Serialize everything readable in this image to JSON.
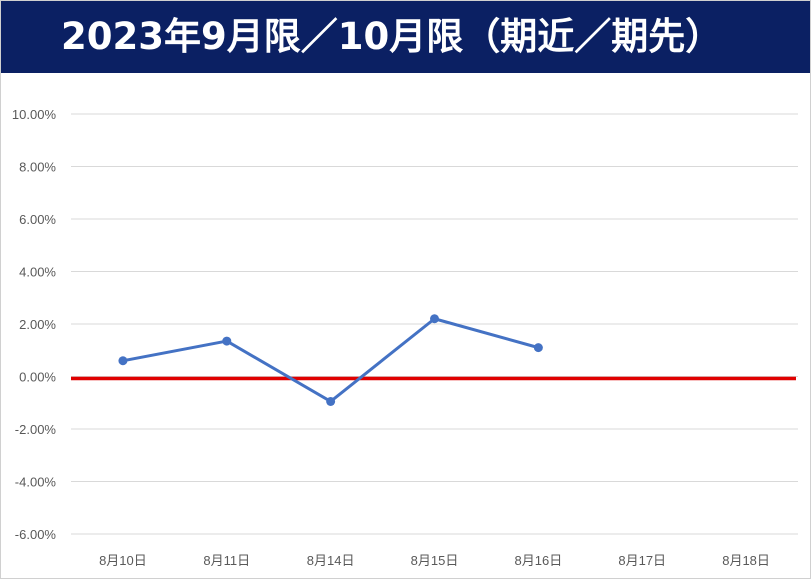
{
  "title": "2023年9月限／10月限（期近／期先）",
  "colors": {
    "title_background": "#0b2063",
    "title_text": "#ffffff",
    "series_line": "#4472c4",
    "zero_line": "#e00000",
    "grid": "#d9d9d9",
    "tick_text": "#595959"
  },
  "chart_data": {
    "type": "line",
    "title": "2023年9月限／10月限（期近／期先）",
    "xlabel": "",
    "ylabel": "",
    "categories": [
      "8月10日",
      "8月11日",
      "8月14日",
      "8月15日",
      "8月16日",
      "8月17日",
      "8月18日"
    ],
    "ylim": [
      -0.06,
      0.1
    ],
    "yticks": [
      0.1,
      0.08,
      0.06,
      0.04,
      0.02,
      0.0,
      -0.02,
      -0.04,
      -0.06
    ],
    "ytick_labels": [
      "10.00%",
      "8.00%",
      "6.00%",
      "4.00%",
      "2.00%",
      "0.00%",
      "-2.00%",
      "-4.00%",
      "-6.00%"
    ],
    "grid": true,
    "legend": "none",
    "reference_line": {
      "y": 0.0
    },
    "series": [
      {
        "values": [
          0.006,
          0.0135,
          -0.0095,
          0.022,
          0.011,
          null,
          null
        ]
      }
    ]
  }
}
